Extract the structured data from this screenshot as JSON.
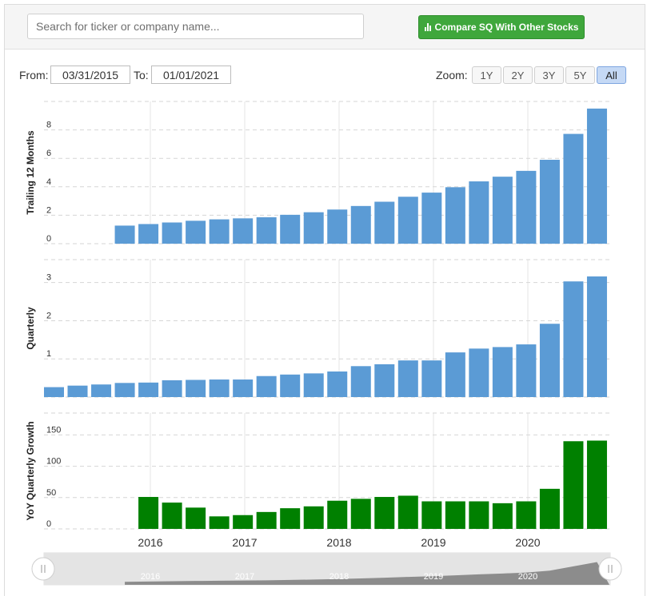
{
  "search": {
    "placeholder": "Search for ticker or company name..."
  },
  "compare_button": {
    "label": "Compare SQ With Other Stocks",
    "icon": "bar-chart-icon",
    "color": "#3fa73c"
  },
  "range": {
    "from_label": "From:",
    "from_value": "03/31/2015",
    "to_label": "To:",
    "to_value": "01/01/2021"
  },
  "zoom": {
    "label": "Zoom:",
    "options": [
      "1Y",
      "2Y",
      "3Y",
      "5Y",
      "All"
    ],
    "selected": "All"
  },
  "colors": {
    "revenue_bars": "#5b9bd5",
    "growth_bars": "#008000"
  },
  "chart_data": [
    {
      "type": "bar",
      "ylabel": "Trailing 12 Months",
      "yticks": [
        0,
        2,
        4,
        6,
        8
      ],
      "ylim": [
        0,
        10
      ],
      "grid": true,
      "x": [
        "2015-03-31",
        "2015-06-30",
        "2015-09-30",
        "2015-12-31",
        "2016-03-31",
        "2016-06-30",
        "2016-09-30",
        "2016-12-31",
        "2017-03-31",
        "2017-06-30",
        "2017-09-30",
        "2017-12-31",
        "2018-03-31",
        "2018-06-30",
        "2018-09-30",
        "2018-12-31",
        "2019-03-31",
        "2019-06-30",
        "2019-09-30",
        "2019-12-31",
        "2020-03-31",
        "2020-06-30",
        "2020-09-30",
        "2020-12-31"
      ],
      "values": [
        null,
        null,
        null,
        1.27,
        1.38,
        1.49,
        1.61,
        1.71,
        1.78,
        1.86,
        2.03,
        2.21,
        2.4,
        2.65,
        2.95,
        3.3,
        3.59,
        3.97,
        4.38,
        4.71,
        5.12,
        5.9,
        7.72,
        9.5
      ]
    },
    {
      "type": "bar",
      "ylabel": "Quarterly",
      "yticks": [
        0,
        1,
        2,
        3
      ],
      "ylim": [
        0,
        3.6
      ],
      "grid": true,
      "x": [
        "2015-03-31",
        "2015-06-30",
        "2015-09-30",
        "2015-12-31",
        "2016-03-31",
        "2016-06-30",
        "2016-09-30",
        "2016-12-31",
        "2017-03-31",
        "2017-06-30",
        "2017-09-30",
        "2017-12-31",
        "2018-03-31",
        "2018-06-30",
        "2018-09-30",
        "2018-12-31",
        "2019-03-31",
        "2019-06-30",
        "2019-09-30",
        "2019-12-31",
        "2020-03-31",
        "2020-06-30",
        "2020-09-30",
        "2020-12-31"
      ],
      "values": [
        0.26,
        0.3,
        0.33,
        0.37,
        0.38,
        0.44,
        0.45,
        0.46,
        0.46,
        0.55,
        0.59,
        0.62,
        0.67,
        0.81,
        0.86,
        0.96,
        0.96,
        1.17,
        1.27,
        1.31,
        1.38,
        1.92,
        3.03,
        3.16
      ]
    },
    {
      "type": "bar",
      "ylabel": "YoY Quarterly Growth",
      "yticks": [
        0,
        50,
        100,
        150
      ],
      "ylim": [
        0,
        185
      ],
      "grid": true,
      "x": [
        "2015-03-31",
        "2015-06-30",
        "2015-09-30",
        "2015-12-31",
        "2016-03-31",
        "2016-06-30",
        "2016-09-30",
        "2016-12-31",
        "2017-03-31",
        "2017-06-30",
        "2017-09-30",
        "2017-12-31",
        "2018-03-31",
        "2018-06-30",
        "2018-09-30",
        "2018-12-31",
        "2019-03-31",
        "2019-06-30",
        "2019-09-30",
        "2019-12-31",
        "2020-03-31",
        "2020-06-30",
        "2020-09-30",
        "2020-12-31"
      ],
      "values": [
        null,
        null,
        null,
        null,
        51,
        42,
        34,
        20,
        22,
        27,
        33,
        36,
        45,
        48,
        51,
        53,
        44,
        44,
        44,
        41,
        44,
        64,
        140,
        141
      ]
    }
  ],
  "x_axis": {
    "ticks": [
      "2016",
      "2017",
      "2018",
      "2019",
      "2020"
    ]
  },
  "navigator": {
    "ticks": [
      "2016",
      "2017",
      "2018",
      "2019",
      "2020"
    ]
  }
}
